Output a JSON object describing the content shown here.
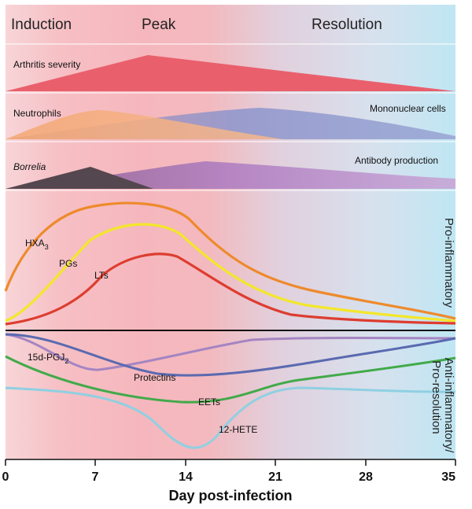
{
  "phases": [
    "Induction",
    "Peak",
    "Resolution"
  ],
  "panels": {
    "arthritis": "Arthritis severity",
    "neutrophils": "Neutrophils",
    "mononuclear": "Mononuclear cells",
    "borrelia": "Borrelia",
    "antibody": "Antibody production"
  },
  "pro_label": "Pro-inflammatory",
  "anti_label_1": "Anti-inflammatory/",
  "anti_label_2": "Pro-resolution",
  "curve_labels": {
    "hxa3": "HXA",
    "hxa3_sub": "3",
    "pgs": "PGs",
    "lts": "LTs",
    "pgj2": "15d-PGJ",
    "pgj2_sub": "2",
    "protectins": "Protectins",
    "eets": "EETs",
    "hete": "12-HETE"
  },
  "x_ticks": [
    "0",
    "7",
    "14",
    "21",
    "28",
    "35"
  ],
  "x_label": "Day post-infection",
  "colors": {
    "arthritis": "#e9606c",
    "neutrophils": "#f4a872",
    "mononuclear": "#8a93c8",
    "borrelia": "#55474f",
    "antibody": "#a77cc0",
    "hxa3": "#ee8a2c",
    "pgs": "#f3e72a",
    "lts": "#dd3d30",
    "pgj2": "#a585c2",
    "protectins": "#5a6ab0",
    "eets": "#42aa4a",
    "hete": "#8fd0e2"
  }
}
